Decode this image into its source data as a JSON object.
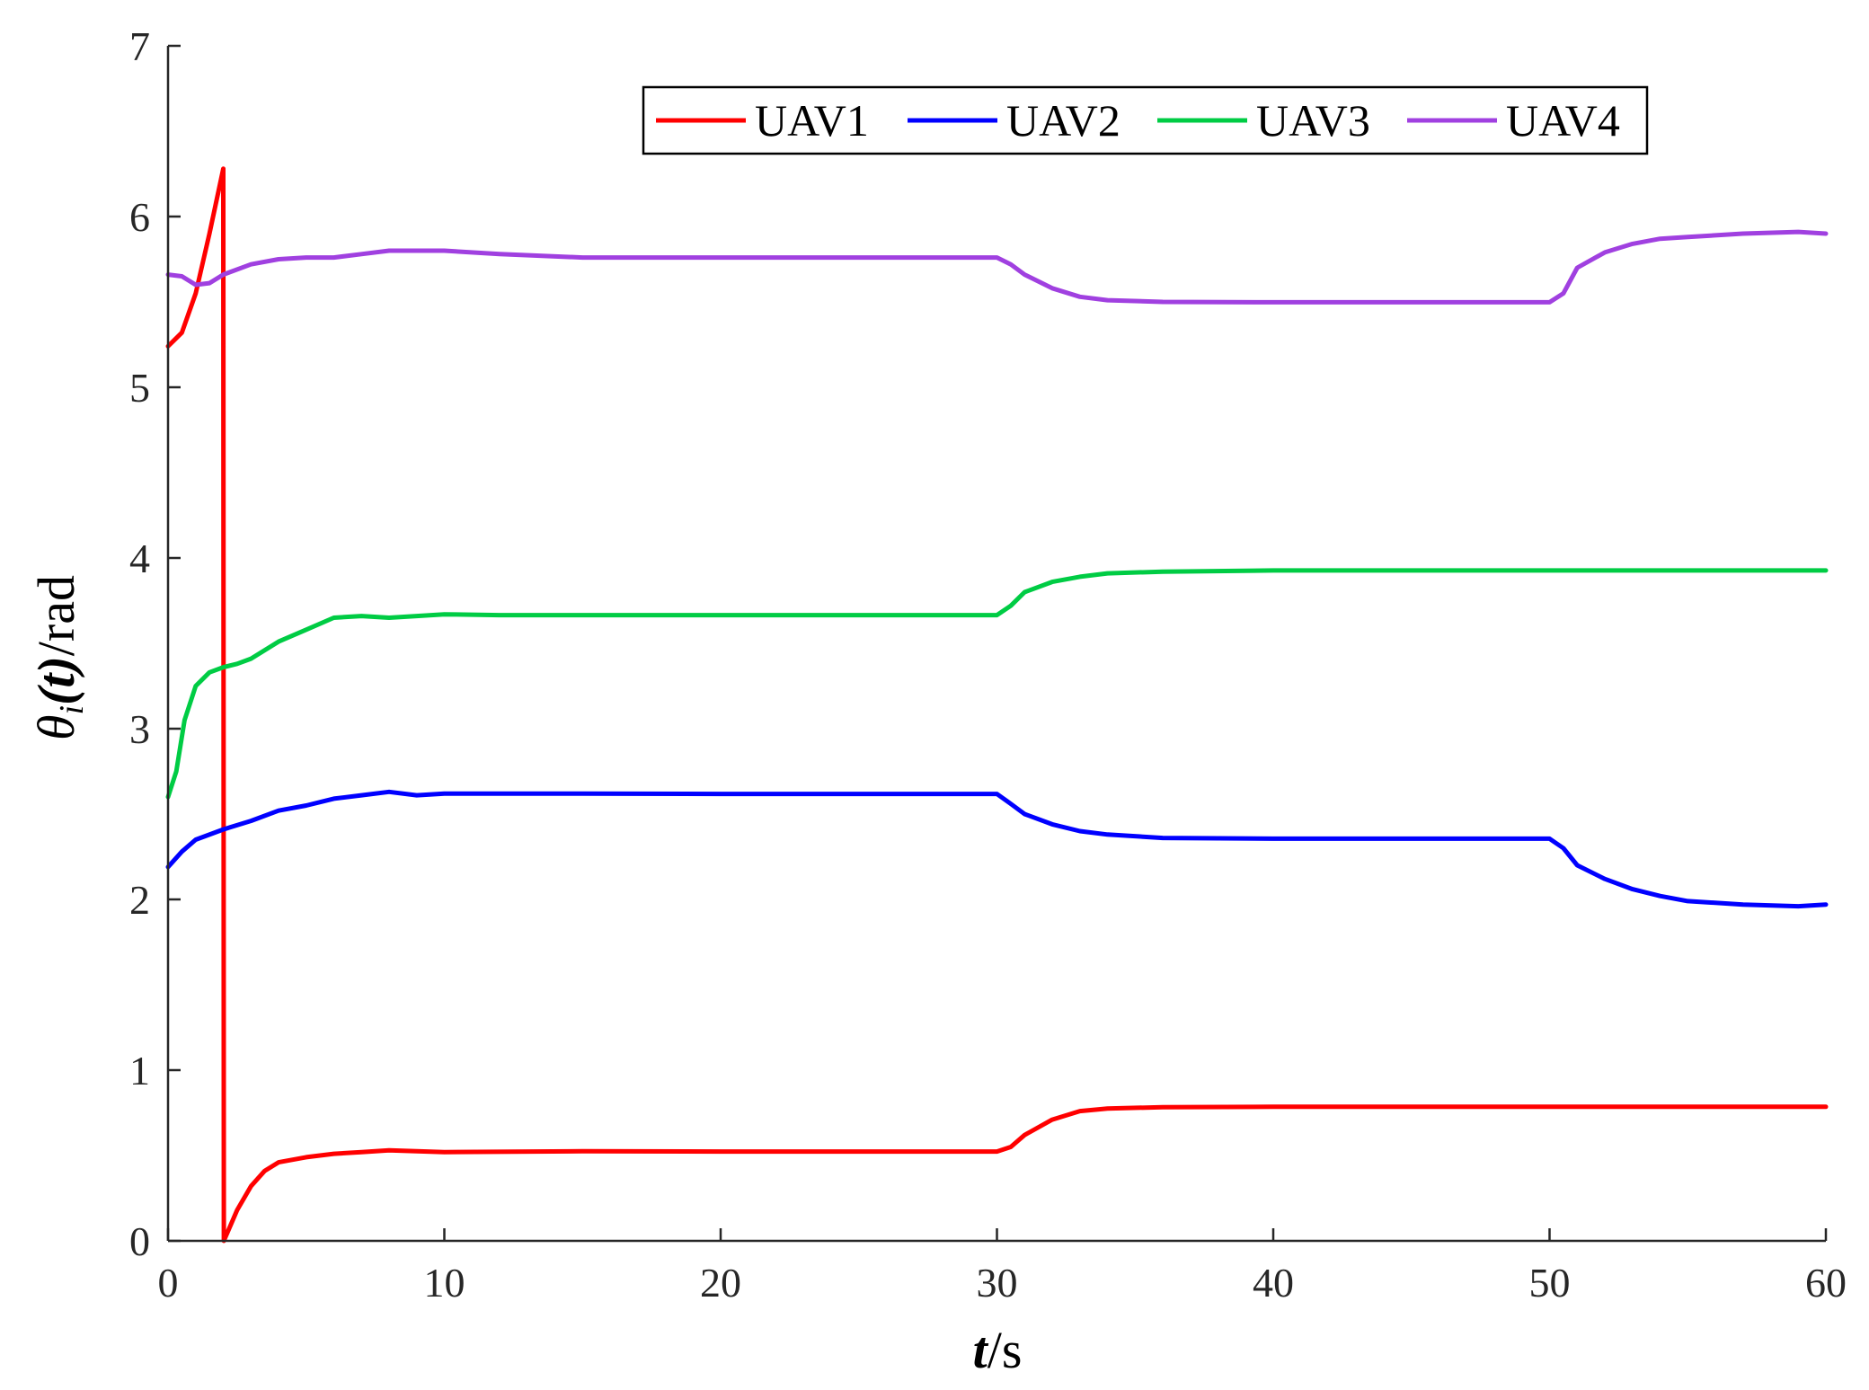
{
  "chart_data": {
    "type": "line",
    "title": "",
    "xlabel_main": "t",
    "xlabel_unit": "/s",
    "ylabel_main": "θ",
    "ylabel_sub": "i",
    "ylabel_arg": "(t)",
    "ylabel_unit": "/rad",
    "xlim": [
      0,
      60
    ],
    "ylim": [
      0,
      7
    ],
    "xticks": [
      0,
      10,
      20,
      30,
      40,
      50,
      60
    ],
    "yticks": [
      0,
      1,
      2,
      3,
      4,
      5,
      6,
      7
    ],
    "xtick_labels": [
      "0",
      "10",
      "20",
      "30",
      "40",
      "50",
      "60"
    ],
    "ytick_labels": [
      "0",
      "1",
      "2",
      "3",
      "4",
      "5",
      "6",
      "7"
    ],
    "grid": false,
    "legend_position": "top-right",
    "legend_orientation": "horizontal",
    "series": [
      {
        "name": "UAV1",
        "color": "#ff0000",
        "points": [
          [
            0,
            5.24
          ],
          [
            0.5,
            5.32
          ],
          [
            1.0,
            5.55
          ],
          [
            1.5,
            5.9
          ],
          [
            2.0,
            6.28
          ],
          [
            2.02,
            0.0
          ],
          [
            2.5,
            0.18
          ],
          [
            3.0,
            0.32
          ],
          [
            3.5,
            0.41
          ],
          [
            4.0,
            0.46
          ],
          [
            5.0,
            0.49
          ],
          [
            6.0,
            0.51
          ],
          [
            7.0,
            0.52
          ],
          [
            8.0,
            0.53
          ],
          [
            10.0,
            0.52
          ],
          [
            15.0,
            0.525
          ],
          [
            20.0,
            0.523
          ],
          [
            25.0,
            0.523
          ],
          [
            30.0,
            0.523
          ],
          [
            30.5,
            0.55
          ],
          [
            31.0,
            0.62
          ],
          [
            32.0,
            0.71
          ],
          [
            33.0,
            0.76
          ],
          [
            34.0,
            0.775
          ],
          [
            36.0,
            0.783
          ],
          [
            40.0,
            0.785
          ],
          [
            45.0,
            0.785
          ],
          [
            50.0,
            0.785
          ],
          [
            55.0,
            0.785
          ],
          [
            60.0,
            0.785
          ]
        ]
      },
      {
        "name": "UAV2",
        "color": "#0000ff",
        "points": [
          [
            0,
            2.19
          ],
          [
            0.5,
            2.28
          ],
          [
            1.0,
            2.35
          ],
          [
            2.0,
            2.41
          ],
          [
            3.0,
            2.46
          ],
          [
            4.0,
            2.52
          ],
          [
            5.0,
            2.55
          ],
          [
            6.0,
            2.59
          ],
          [
            7.0,
            2.61
          ],
          [
            8.0,
            2.63
          ],
          [
            9.0,
            2.61
          ],
          [
            10.0,
            2.62
          ],
          [
            12.0,
            2.62
          ],
          [
            15.0,
            2.62
          ],
          [
            20.0,
            2.618
          ],
          [
            25.0,
            2.618
          ],
          [
            30.0,
            2.618
          ],
          [
            30.5,
            2.56
          ],
          [
            31.0,
            2.5
          ],
          [
            32.0,
            2.44
          ],
          [
            33.0,
            2.4
          ],
          [
            34.0,
            2.38
          ],
          [
            36.0,
            2.36
          ],
          [
            40.0,
            2.356
          ],
          [
            45.0,
            2.356
          ],
          [
            50.0,
            2.356
          ],
          [
            50.5,
            2.3
          ],
          [
            51.0,
            2.2
          ],
          [
            52.0,
            2.12
          ],
          [
            53.0,
            2.06
          ],
          [
            54.0,
            2.02
          ],
          [
            55.0,
            1.99
          ],
          [
            57.0,
            1.97
          ],
          [
            59.0,
            1.96
          ],
          [
            60.0,
            1.97
          ]
        ]
      },
      {
        "name": "UAV3",
        "color": "#00cc44",
        "points": [
          [
            0,
            2.6
          ],
          [
            0.3,
            2.75
          ],
          [
            0.6,
            3.05
          ],
          [
            1.0,
            3.25
          ],
          [
            1.5,
            3.33
          ],
          [
            2.0,
            3.36
          ],
          [
            2.5,
            3.38
          ],
          [
            3.0,
            3.41
          ],
          [
            4.0,
            3.51
          ],
          [
            5.0,
            3.58
          ],
          [
            6.0,
            3.65
          ],
          [
            7.0,
            3.66
          ],
          [
            8.0,
            3.65
          ],
          [
            10.0,
            3.67
          ],
          [
            12.0,
            3.665
          ],
          [
            15.0,
            3.665
          ],
          [
            20.0,
            3.665
          ],
          [
            25.0,
            3.665
          ],
          [
            30.0,
            3.665
          ],
          [
            30.5,
            3.72
          ],
          [
            31.0,
            3.8
          ],
          [
            32.0,
            3.86
          ],
          [
            33.0,
            3.89
          ],
          [
            34.0,
            3.91
          ],
          [
            36.0,
            3.92
          ],
          [
            40.0,
            3.927
          ],
          [
            45.0,
            3.927
          ],
          [
            50.0,
            3.927
          ],
          [
            55.0,
            3.927
          ],
          [
            60.0,
            3.927
          ]
        ]
      },
      {
        "name": "UAV4",
        "color": "#a040e0",
        "points": [
          [
            0,
            5.66
          ],
          [
            0.5,
            5.65
          ],
          [
            1.0,
            5.6
          ],
          [
            1.5,
            5.61
          ],
          [
            2.0,
            5.66
          ],
          [
            3.0,
            5.72
          ],
          [
            4.0,
            5.75
          ],
          [
            5.0,
            5.76
          ],
          [
            6.0,
            5.76
          ],
          [
            7.0,
            5.78
          ],
          [
            8.0,
            5.8
          ],
          [
            10.0,
            5.8
          ],
          [
            12.0,
            5.78
          ],
          [
            15.0,
            5.76
          ],
          [
            20.0,
            5.76
          ],
          [
            25.0,
            5.76
          ],
          [
            30.0,
            5.76
          ],
          [
            30.5,
            5.72
          ],
          [
            31.0,
            5.66
          ],
          [
            32.0,
            5.58
          ],
          [
            33.0,
            5.53
          ],
          [
            34.0,
            5.51
          ],
          [
            36.0,
            5.5
          ],
          [
            40.0,
            5.498
          ],
          [
            45.0,
            5.498
          ],
          [
            50.0,
            5.498
          ],
          [
            50.5,
            5.55
          ],
          [
            51.0,
            5.7
          ],
          [
            52.0,
            5.79
          ],
          [
            53.0,
            5.84
          ],
          [
            54.0,
            5.87
          ],
          [
            55.0,
            5.88
          ],
          [
            57.0,
            5.9
          ],
          [
            59.0,
            5.91
          ],
          [
            60.0,
            5.9
          ]
        ]
      }
    ]
  }
}
